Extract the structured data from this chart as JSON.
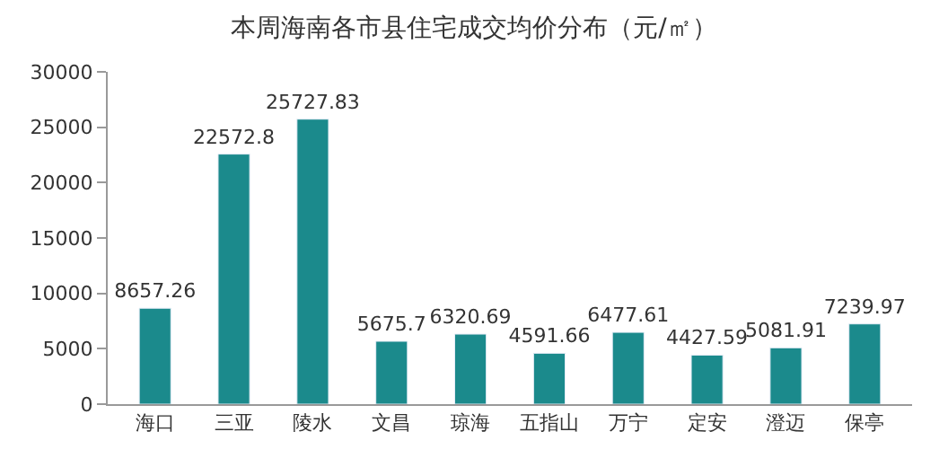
{
  "chart_data": {
    "type": "bar",
    "title": "本周海南各市县住宅成交均价分布（元/㎡）",
    "categories": [
      "海口",
      "三亚",
      "陵水",
      "文昌",
      "琼海",
      "五指山",
      "万宁",
      "定安",
      "澄迈",
      "保亭"
    ],
    "values": [
      8657.26,
      22572.8,
      25727.83,
      5675.7,
      6320.69,
      4591.66,
      6477.61,
      4427.59,
      5081.91,
      7239.97
    ],
    "value_labels": [
      "8657.26",
      "22572.8",
      "25727.83",
      "5675.7",
      "6320.69",
      "4591.66",
      "6477.61",
      "4427.59",
      "5081.91",
      "7239.97"
    ],
    "color": "#1b8a8c",
    "ylim": [
      0,
      30000
    ],
    "yticks": [
      0,
      5000,
      10000,
      15000,
      20000,
      25000,
      30000
    ],
    "legend": false
  }
}
